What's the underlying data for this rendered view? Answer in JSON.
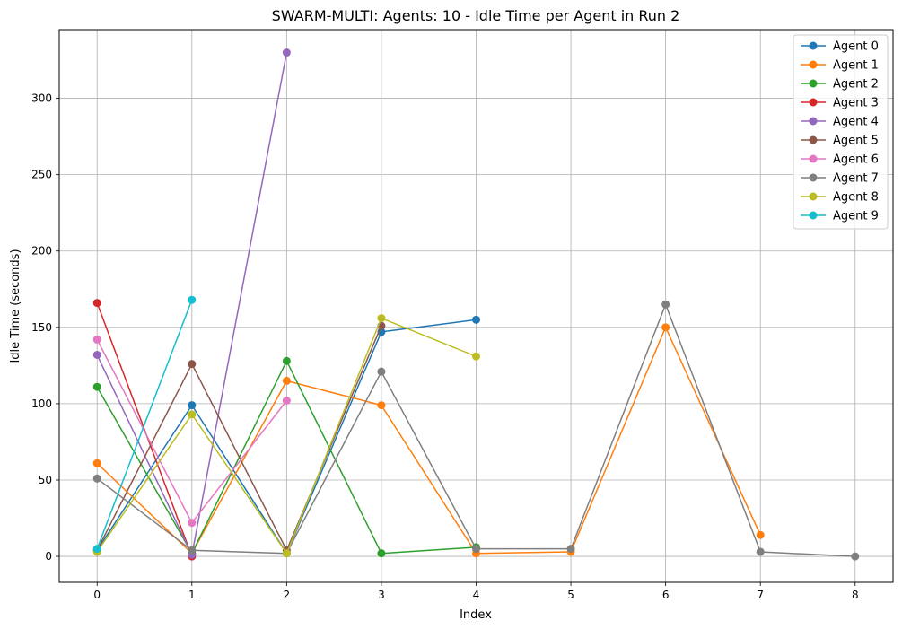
{
  "chart_data": {
    "type": "line",
    "title": "SWARM-MULTI: Agents: 10 - Idle Time per Agent in Run 2",
    "xlabel": "Index",
    "ylabel": "Idle Time (seconds)",
    "xlim": [
      -0.4,
      8.4
    ],
    "ylim": [
      -17,
      345
    ],
    "xticks": [
      0,
      1,
      2,
      3,
      4,
      5,
      6,
      7,
      8
    ],
    "yticks": [
      0,
      50,
      100,
      150,
      200,
      250,
      300
    ],
    "grid": true,
    "legend_position": "top-right",
    "series": [
      {
        "name": "Agent 0",
        "color": "#1f77b4",
        "x": [
          0,
          1,
          2,
          3,
          4
        ],
        "values": [
          4,
          99,
          2,
          147,
          155
        ]
      },
      {
        "name": "Agent 1",
        "color": "#ff7f0e",
        "x": [
          0,
          1,
          2,
          3,
          4,
          5,
          6,
          7
        ],
        "values": [
          61,
          2,
          115,
          99,
          2,
          3,
          150,
          14
        ]
      },
      {
        "name": "Agent 2",
        "color": "#2ca02c",
        "x": [
          0,
          1,
          2,
          3,
          4
        ],
        "values": [
          111,
          2,
          128,
          2,
          6
        ]
      },
      {
        "name": "Agent 3",
        "color": "#d62728",
        "x": [
          0,
          1
        ],
        "values": [
          166,
          0
        ]
      },
      {
        "name": "Agent 4",
        "color": "#9467bd",
        "x": [
          0,
          1,
          2
        ],
        "values": [
          132,
          1,
          330
        ]
      },
      {
        "name": "Agent 5",
        "color": "#8c564b",
        "x": [
          0,
          1,
          2,
          3
        ],
        "values": [
          4,
          126,
          4,
          151
        ]
      },
      {
        "name": "Agent 6",
        "color": "#e377c2",
        "x": [
          0,
          1,
          2
        ],
        "values": [
          142,
          22,
          102
        ]
      },
      {
        "name": "Agent 7",
        "color": "#7f7f7f",
        "x": [
          0,
          1,
          2,
          3,
          4,
          5,
          6,
          7,
          8
        ],
        "values": [
          51,
          4,
          2,
          121,
          5,
          5,
          165,
          3,
          0
        ]
      },
      {
        "name": "Agent 8",
        "color": "#bcbd22",
        "x": [
          0,
          1,
          2,
          3,
          4
        ],
        "values": [
          3,
          93,
          2,
          156,
          131
        ]
      },
      {
        "name": "Agent 9",
        "color": "#17becf",
        "x": [
          0,
          1
        ],
        "values": [
          5,
          168
        ]
      }
    ]
  }
}
